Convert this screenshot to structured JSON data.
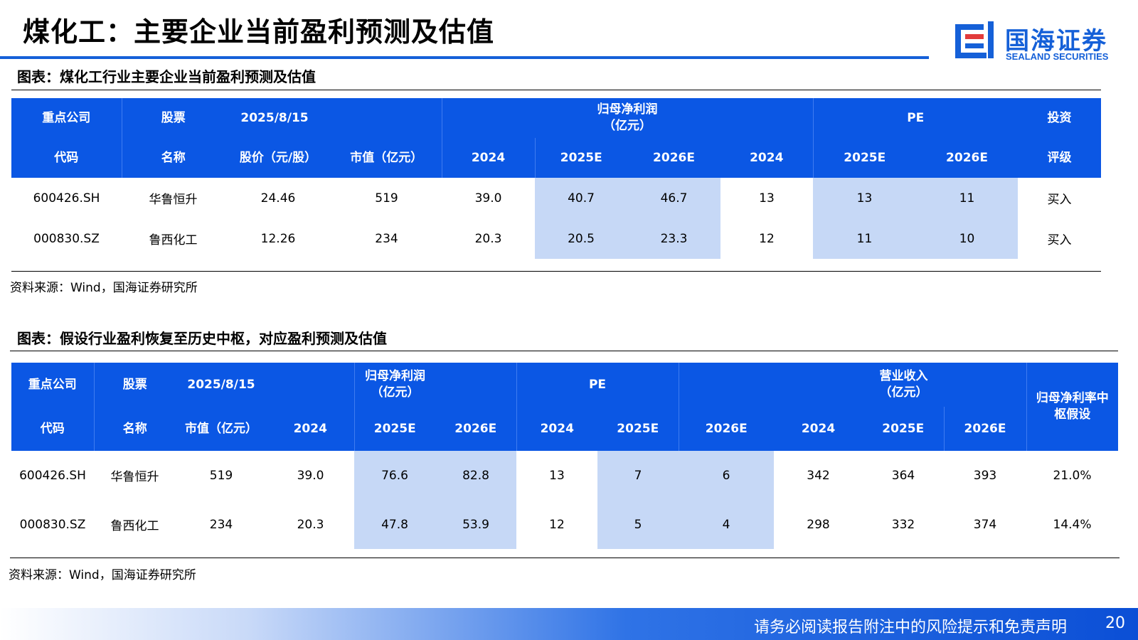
{
  "header": {
    "title": "煤化工：主要企业当前盈利预测及估值",
    "logo_cn": "国海证券",
    "logo_en": "SEALAND SECURITIES",
    "logo_icon": "sealand-logo-icon",
    "accent_color": "#1560d8"
  },
  "table1": {
    "caption": "图表：煤化工行业主要企业当前盈利预测及估值",
    "header_row1": [
      "重点公司",
      "股票",
      "2025/8/15",
      "归母净利润\n（亿元）",
      "PE",
      "投资"
    ],
    "header_row2": [
      "代码",
      "名称",
      "股价（元/股）",
      "市值（亿元）",
      "2024",
      "2025E",
      "2026E",
      "2024",
      "2025E",
      "2026E",
      "评级"
    ],
    "rows": [
      [
        "600426.SH",
        "华鲁恒升",
        "24.46",
        "519",
        "39.0",
        "40.7",
        "46.7",
        "13",
        "13",
        "11",
        "买入"
      ],
      [
        "000830.SZ",
        "鲁西化工",
        "12.26",
        "234",
        "20.3",
        "20.5",
        "23.3",
        "12",
        "11",
        "10",
        "买入"
      ]
    ],
    "source": "资料来源：Wind，国海证券研究所"
  },
  "table2": {
    "caption": "图表：假设行业盈利恢复至历史中枢，对应盈利预测及估值",
    "header_row1": [
      "重点公司",
      "股票",
      "2025/8/15",
      "归母净利润\n（亿元）",
      "PE",
      "营业收入\n（亿元）",
      "归母净利率中\n枢假设"
    ],
    "header_row2": [
      "代码",
      "名称",
      "市值（亿元）",
      "2024",
      "2025E",
      "2026E",
      "2024",
      "2025E",
      "2026E",
      "2024",
      "2025E",
      "2026E"
    ],
    "rows": [
      [
        "600426.SH",
        "华鲁恒升",
        "519",
        "39.0",
        "76.6",
        "82.8",
        "13",
        "7",
        "6",
        "342",
        "364",
        "393",
        "21.0%"
      ],
      [
        "000830.SZ",
        "鲁西化工",
        "234",
        "20.3",
        "47.8",
        "53.9",
        "12",
        "5",
        "4",
        "298",
        "332",
        "374",
        "14.4%"
      ]
    ],
    "source": "资料来源：Wind，国海证券研究所"
  },
  "footer": {
    "disclaimer": "请务必阅读报告附注中的风险提示和免责声明",
    "page_number": "20"
  }
}
